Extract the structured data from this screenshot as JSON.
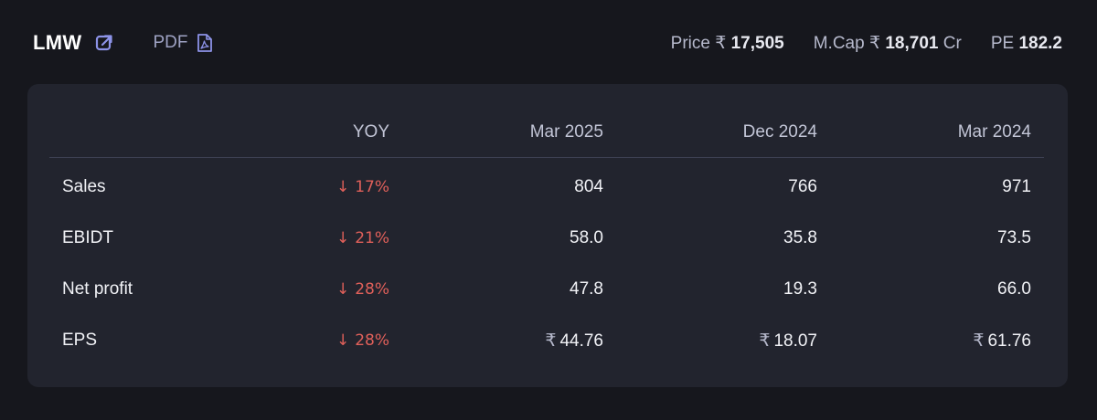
{
  "header": {
    "company": "LMW",
    "pdf_label": "PDF",
    "price_label": "Price",
    "price_currency": "₹",
    "price_value": "17,505",
    "mcap_label": "M.Cap",
    "mcap_currency": "₹",
    "mcap_value": "18,701",
    "mcap_unit": "Cr",
    "pe_label": "PE",
    "pe_value": "182.2",
    "icons": {
      "external_link": "external-link-icon",
      "pdf": "pdf-file-icon"
    }
  },
  "table": {
    "columns": [
      "",
      "YOY",
      "Mar 2025",
      "Dec 2024",
      "Mar 2024"
    ],
    "rows": [
      {
        "label": "Sales",
        "yoy_arrow": "↓",
        "yoy": "17%",
        "values": [
          "804",
          "766",
          "971"
        ],
        "currency": [
          "",
          "",
          ""
        ]
      },
      {
        "label": "EBIDT",
        "yoy_arrow": "↓",
        "yoy": "21%",
        "values": [
          "58.0",
          "35.8",
          "73.5"
        ],
        "currency": [
          "",
          "",
          ""
        ]
      },
      {
        "label": "Net profit",
        "yoy_arrow": "↓",
        "yoy": "28%",
        "values": [
          "47.8",
          "19.3",
          "66.0"
        ],
        "currency": [
          "",
          "",
          ""
        ]
      },
      {
        "label": "EPS",
        "yoy_arrow": "↓",
        "yoy": "28%",
        "values": [
          "44.76",
          "18.07",
          "61.76"
        ],
        "currency": [
          "₹",
          "₹",
          "₹"
        ]
      }
    ]
  },
  "colors": {
    "background": "#16171d",
    "card": "#22242e",
    "negative": "#e0605a",
    "accent_icon": "#8d93e8"
  }
}
